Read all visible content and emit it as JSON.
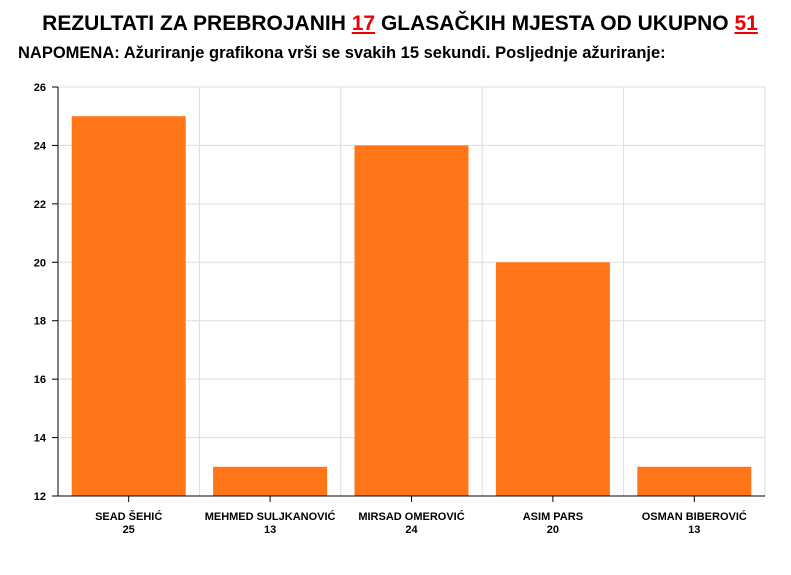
{
  "header": {
    "title_prefix": "REZULTATI ZA PREBROJANIH",
    "counted": "17",
    "title_middle": "GLASAČKIH MJESTA OD UKUPNO",
    "total": "51",
    "note": "NAPOMENA: Ažuriranje grafikona vrši se svakih 15 sekundi. Posljednje ažuriranje:"
  },
  "colors": {
    "bar": "#ff7518",
    "highlight": "#ee0000"
  },
  "chart_data": {
    "type": "bar",
    "title": "",
    "xlabel": "",
    "ylabel": "",
    "categories": [
      "SEAD ŠEHIĆ",
      "MEHMED SULJKANOVIĆ",
      "MIRSAD OMEROVIĆ",
      "ASIM PARS",
      "OSMAN BIBEROVIĆ"
    ],
    "values": [
      25,
      13,
      24,
      20,
      13
    ],
    "ylim": [
      12,
      26
    ],
    "yticks": [
      "12",
      "14",
      "16",
      "18",
      "20",
      "22",
      "24",
      "26"
    ],
    "grid": true,
    "legend": "none"
  }
}
